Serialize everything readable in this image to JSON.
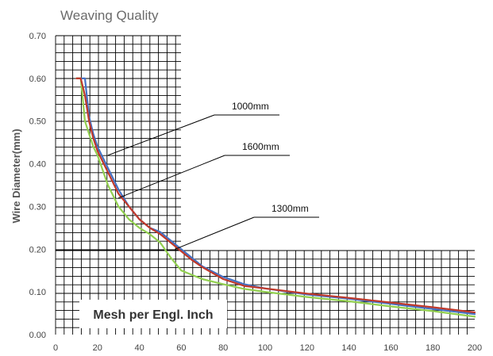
{
  "chart_data": {
    "type": "line",
    "title": "Weaving Quality",
    "xlabel": "Mesh per Engl. Inch",
    "ylabel": "Wire Diameter(mm)",
    "xlim": [
      0,
      200
    ],
    "ylim": [
      0,
      0.7
    ],
    "xticks": [
      0,
      20,
      40,
      60,
      80,
      100,
      120,
      140,
      160,
      180,
      200
    ],
    "yticks": [
      "0.00",
      "0.10",
      "0.20",
      "0.30",
      "0.40",
      "0.50",
      "0.60",
      "0.70"
    ],
    "series": [
      {
        "name": "1000mm",
        "color": "#4472c4",
        "x": [
          10,
          12,
          14,
          16,
          18,
          20,
          25,
          30,
          35,
          40,
          45,
          50,
          55,
          60,
          65,
          70,
          80,
          90,
          100,
          120,
          140,
          160,
          180,
          200
        ],
        "y": [
          0.6,
          0.6,
          0.6,
          0.51,
          0.47,
          0.44,
          0.39,
          0.34,
          0.3,
          0.27,
          0.25,
          0.24,
          0.22,
          0.2,
          0.18,
          0.16,
          0.135,
          0.118,
          0.108,
          0.094,
          0.084,
          0.072,
          0.06,
          0.048
        ]
      },
      {
        "name": "1300mm",
        "color": "#c0392b",
        "x": [
          10,
          12,
          14,
          16,
          18,
          20,
          25,
          30,
          35,
          40,
          45,
          50,
          55,
          60,
          65,
          70,
          80,
          90,
          100,
          120,
          140,
          160,
          180,
          200
        ],
        "y": [
          0.6,
          0.6,
          0.56,
          0.5,
          0.46,
          0.43,
          0.38,
          0.33,
          0.3,
          0.27,
          0.25,
          0.235,
          0.215,
          0.195,
          0.175,
          0.158,
          0.13,
          0.114,
          0.108,
          0.096,
          0.086,
          0.075,
          0.064,
          0.052
        ]
      },
      {
        "name": "1600mm",
        "color": "#92d050",
        "x": [
          10,
          12,
          14,
          16,
          18,
          20,
          25,
          30,
          35,
          40,
          45,
          50,
          55,
          60,
          65,
          70,
          80,
          90,
          100,
          120,
          140,
          160,
          180,
          200
        ],
        "y": [
          0.6,
          0.6,
          0.5,
          0.47,
          0.44,
          0.42,
          0.35,
          0.3,
          0.27,
          0.25,
          0.235,
          0.215,
          0.18,
          0.15,
          0.14,
          0.13,
          0.118,
          0.107,
          0.1,
          0.088,
          0.078,
          0.066,
          0.055,
          0.042
        ]
      }
    ],
    "annotations": [
      {
        "text": "1000mm",
        "target_x": 25,
        "target_y": 0.42
      },
      {
        "text": "1600mm",
        "target_x": 30,
        "target_y": 0.32
      },
      {
        "text": "1300mm",
        "target_x": 57,
        "target_y": 0.2
      }
    ]
  }
}
